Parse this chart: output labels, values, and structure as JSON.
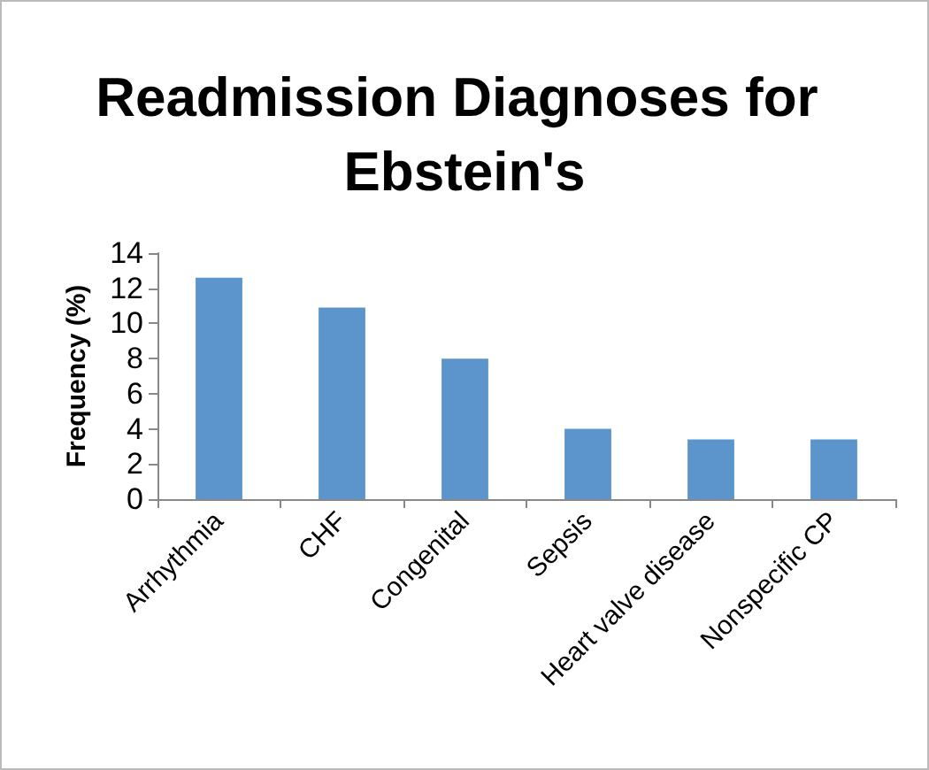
{
  "chart_data": {
    "type": "bar",
    "title": "Readmission Diagnoses for Ebstein's",
    "ylabel": "Frequency (%)",
    "categories": [
      "Arrhythmia",
      "CHF",
      "Congenital",
      "Sepsis",
      "Heart valve disease",
      "Nonspecific CP"
    ],
    "values": [
      12.6,
      10.9,
      8.0,
      4.0,
      3.4,
      3.4
    ],
    "color": "#5b95cb",
    "ylim": [
      0,
      14
    ],
    "yticks": [
      0,
      2,
      4,
      6,
      8,
      10,
      12,
      14
    ],
    "grid": false
  }
}
